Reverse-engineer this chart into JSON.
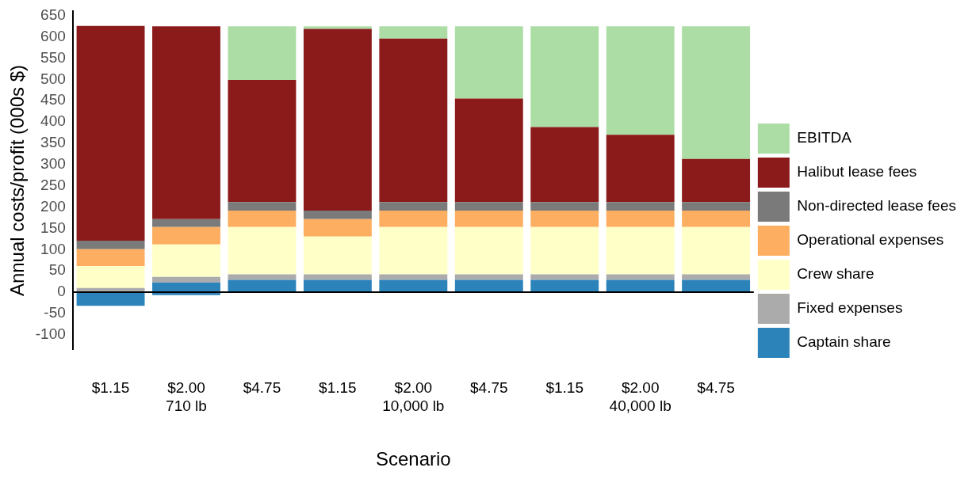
{
  "chart_data": {
    "type": "bar",
    "stacked": true,
    "xlabel": "Scenario",
    "ylabel": "Annual costs/profit (000s $)",
    "categories": [
      "$1.15",
      "$2.00\n710 lb",
      "$4.75",
      "$1.15",
      "$2.00\n10,000 lb",
      "$4.75",
      "$1.15",
      "$2.00\n40,000 lb",
      "$4.75"
    ],
    "series": [
      {
        "name": "Captain share",
        "color": "#2c83ba",
        "values": [
          null,
          23,
          29,
          29,
          29,
          29,
          29,
          29,
          29
        ]
      },
      {
        "color": "#2c83ba",
        "values": [
          -32,
          -7,
          null,
          null,
          null,
          null,
          null,
          null,
          null
        ]
      },
      {
        "name": "Fixed expenses",
        "color": "#ababab",
        "values": [
          10,
          13,
          13,
          13,
          13,
          13,
          13,
          13,
          13
        ]
      },
      {
        "name": "Crew share",
        "color": "#ffffc8",
        "values": [
          51,
          76,
          111,
          89,
          111,
          111,
          111,
          111,
          111
        ]
      },
      {
        "name": "Operational expenses",
        "color": "#fdae61",
        "values": [
          40,
          41,
          39,
          41,
          39,
          39,
          39,
          39,
          39
        ]
      },
      {
        "name": "Non-directed lease fees",
        "color": "#7a7a7a",
        "values": [
          20,
          19,
          20,
          20,
          20,
          20,
          20,
          20,
          20
        ]
      },
      {
        "name": "Halibut lease fees",
        "color": "#8b1a1a",
        "values": [
          505,
          453,
          287,
          427,
          384,
          243,
          176,
          158,
          101
        ]
      },
      {
        "name": "EBITDA",
        "color": "#abdda4",
        "values": [
          null,
          null,
          126,
          6,
          29,
          170,
          237,
          255,
          312
        ]
      }
    ],
    "ylim": [
      -135,
      660
    ],
    "yticks": [
      -100,
      -50,
      0,
      50,
      100,
      150,
      200,
      250,
      300,
      350,
      400,
      450,
      500,
      550,
      600,
      650
    ],
    "ref_lines": [
      {
        "axis": "y",
        "value": 0,
        "color": "#000000"
      }
    ],
    "grid": false,
    "legend": "right"
  }
}
